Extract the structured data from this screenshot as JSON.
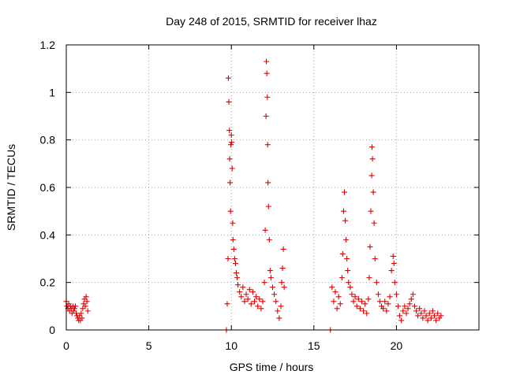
{
  "chart_data": {
    "type": "scatter",
    "title": "Day 248 of 2015, SRMTID for receiver lhaz",
    "xlabel": "GPS time / hours",
    "ylabel": "SRMTID / TECUs",
    "xlim": [
      0,
      25
    ],
    "ylim": [
      0,
      1.2
    ],
    "xticks": [
      0,
      5,
      10,
      15,
      20
    ],
    "xtick_labels": [
      "0",
      "5",
      "10",
      "15",
      "20"
    ],
    "yticks": [
      0,
      0.2,
      0.4,
      0.6,
      0.8,
      1.0,
      1.2
    ],
    "ytick_labels": [
      "0",
      "0.2",
      "0.4",
      "0.6",
      "0.8",
      "1",
      "1.2"
    ],
    "grid": true,
    "marker": "+",
    "color": "#e00000",
    "series": [
      {
        "name": "SRMTID",
        "points": [
          [
            0.0,
            0.12
          ],
          [
            0.05,
            0.1
          ],
          [
            0.1,
            0.09
          ],
          [
            0.15,
            0.11
          ],
          [
            0.2,
            0.08
          ],
          [
            0.25,
            0.1
          ],
          [
            0.3,
            0.09
          ],
          [
            0.35,
            0.07
          ],
          [
            0.4,
            0.1
          ],
          [
            0.45,
            0.08
          ],
          [
            0.5,
            0.09
          ],
          [
            0.55,
            0.1
          ],
          [
            0.6,
            0.07
          ],
          [
            0.65,
            0.06
          ],
          [
            0.7,
            0.05
          ],
          [
            0.75,
            0.04
          ],
          [
            0.8,
            0.06
          ],
          [
            0.85,
            0.04
          ],
          [
            0.9,
            0.07
          ],
          [
            0.95,
            0.05
          ],
          [
            1.0,
            0.09
          ],
          [
            1.05,
            0.11
          ],
          [
            1.1,
            0.13
          ],
          [
            1.15,
            0.1
          ],
          [
            1.2,
            0.14
          ],
          [
            1.25,
            0.12
          ],
          [
            1.3,
            0.08
          ],
          [
            9.7,
            0.0
          ],
          [
            9.75,
            0.11
          ],
          [
            9.8,
            0.3
          ],
          [
            9.82,
            1.06
          ],
          [
            9.85,
            0.96
          ],
          [
            9.88,
            0.84
          ],
          [
            9.9,
            0.72
          ],
          [
            9.92,
            0.62
          ],
          [
            9.95,
            0.5
          ],
          [
            9.97,
            0.78
          ],
          [
            10.0,
            0.82
          ],
          [
            10.02,
            0.79
          ],
          [
            10.05,
            0.68
          ],
          [
            10.08,
            0.45
          ],
          [
            10.1,
            0.38
          ],
          [
            10.15,
            0.34
          ],
          [
            10.2,
            0.3
          ],
          [
            10.25,
            0.28
          ],
          [
            10.3,
            0.24
          ],
          [
            10.35,
            0.22
          ],
          [
            10.4,
            0.19
          ],
          [
            10.5,
            0.16
          ],
          [
            10.6,
            0.14
          ],
          [
            10.7,
            0.18
          ],
          [
            10.8,
            0.12
          ],
          [
            10.9,
            0.15
          ],
          [
            11.0,
            0.13
          ],
          [
            11.1,
            0.17
          ],
          [
            11.2,
            0.11
          ],
          [
            11.3,
            0.16
          ],
          [
            11.4,
            0.12
          ],
          [
            11.5,
            0.14
          ],
          [
            11.6,
            0.1
          ],
          [
            11.7,
            0.13
          ],
          [
            11.8,
            0.09
          ],
          [
            11.9,
            0.12
          ],
          [
            12.0,
            0.2
          ],
          [
            12.05,
            0.42
          ],
          [
            12.1,
            0.9
          ],
          [
            12.12,
            1.13
          ],
          [
            12.15,
            1.08
          ],
          [
            12.18,
            0.98
          ],
          [
            12.2,
            0.78
          ],
          [
            12.22,
            0.62
          ],
          [
            12.25,
            0.52
          ],
          [
            12.3,
            0.38
          ],
          [
            12.35,
            0.25
          ],
          [
            12.4,
            0.22
          ],
          [
            12.5,
            0.18
          ],
          [
            12.6,
            0.15
          ],
          [
            12.7,
            0.12
          ],
          [
            12.8,
            0.08
          ],
          [
            12.9,
            0.05
          ],
          [
            13.0,
            0.1
          ],
          [
            13.05,
            0.2
          ],
          [
            13.1,
            0.26
          ],
          [
            13.15,
            0.34
          ],
          [
            13.2,
            0.18
          ],
          [
            16.0,
            0.0
          ],
          [
            16.1,
            0.18
          ],
          [
            16.2,
            0.12
          ],
          [
            16.3,
            0.16
          ],
          [
            16.4,
            0.09
          ],
          [
            16.5,
            0.14
          ],
          [
            16.6,
            0.11
          ],
          [
            16.7,
            0.22
          ],
          [
            16.75,
            0.32
          ],
          [
            16.8,
            0.5
          ],
          [
            16.85,
            0.58
          ],
          [
            16.9,
            0.46
          ],
          [
            16.95,
            0.38
          ],
          [
            17.0,
            0.3
          ],
          [
            17.05,
            0.25
          ],
          [
            17.1,
            0.2
          ],
          [
            17.2,
            0.18
          ],
          [
            17.3,
            0.15
          ],
          [
            17.4,
            0.12
          ],
          [
            17.5,
            0.14
          ],
          [
            17.6,
            0.1
          ],
          [
            17.7,
            0.13
          ],
          [
            17.8,
            0.09
          ],
          [
            17.9,
            0.12
          ],
          [
            18.0,
            0.08
          ],
          [
            18.1,
            0.11
          ],
          [
            18.2,
            0.07
          ],
          [
            18.3,
            0.13
          ],
          [
            18.35,
            0.22
          ],
          [
            18.4,
            0.35
          ],
          [
            18.45,
            0.5
          ],
          [
            18.5,
            0.65
          ],
          [
            18.52,
            0.77
          ],
          [
            18.55,
            0.72
          ],
          [
            18.6,
            0.58
          ],
          [
            18.65,
            0.45
          ],
          [
            18.7,
            0.3
          ],
          [
            18.8,
            0.2
          ],
          [
            18.9,
            0.15
          ],
          [
            19.0,
            0.12
          ],
          [
            19.1,
            0.1
          ],
          [
            19.2,
            0.09
          ],
          [
            19.3,
            0.12
          ],
          [
            19.4,
            0.08
          ],
          [
            19.5,
            0.11
          ],
          [
            19.6,
            0.14
          ],
          [
            19.7,
            0.25
          ],
          [
            19.8,
            0.31
          ],
          [
            19.85,
            0.28
          ],
          [
            19.9,
            0.2
          ],
          [
            20.0,
            0.15
          ],
          [
            20.1,
            0.1
          ],
          [
            20.2,
            0.06
          ],
          [
            20.3,
            0.04
          ],
          [
            20.4,
            0.08
          ],
          [
            20.5,
            0.1
          ],
          [
            20.6,
            0.07
          ],
          [
            20.7,
            0.09
          ],
          [
            20.8,
            0.11
          ],
          [
            20.9,
            0.13
          ],
          [
            21.0,
            0.15
          ],
          [
            21.1,
            0.1
          ],
          [
            21.2,
            0.08
          ],
          [
            21.3,
            0.06
          ],
          [
            21.4,
            0.09
          ],
          [
            21.5,
            0.07
          ],
          [
            21.6,
            0.05
          ],
          [
            21.7,
            0.08
          ],
          [
            21.8,
            0.06
          ],
          [
            21.9,
            0.04
          ],
          [
            22.0,
            0.07
          ],
          [
            22.1,
            0.05
          ],
          [
            22.2,
            0.08
          ],
          [
            22.3,
            0.06
          ],
          [
            22.4,
            0.04
          ],
          [
            22.5,
            0.07
          ],
          [
            22.6,
            0.05
          ],
          [
            22.7,
            0.06
          ]
        ]
      }
    ]
  }
}
